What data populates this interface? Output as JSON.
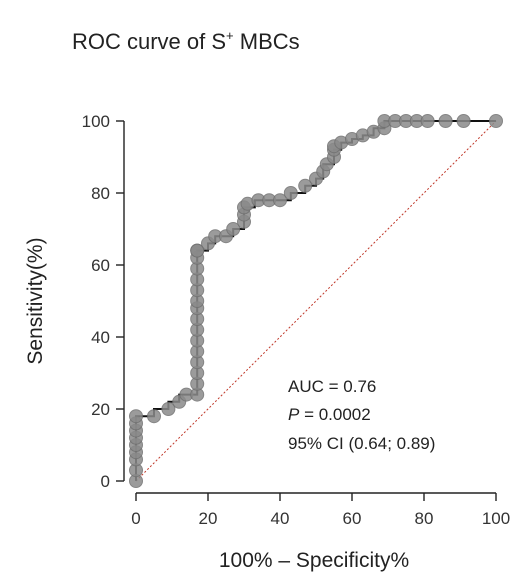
{
  "chart_data": {
    "type": "line",
    "title": "ROC curve of S",
    "title_superscript": "+",
    "title_suffix": " MBCs",
    "xlabel": "100% – Specificity%",
    "ylabel": "Sensitivity(%)",
    "xlim": [
      0,
      100
    ],
    "ylim": [
      0,
      100
    ],
    "xticks": [
      "0",
      "20",
      "40",
      "60",
      "80",
      "100"
    ],
    "yticks": [
      "0",
      "20",
      "40",
      "60",
      "80",
      "100"
    ],
    "grid": false,
    "annotations": {
      "auc": "AUC = 0.76",
      "p_label": "P",
      "p_value": " = 0.0002",
      "ci": "95% CI (0.64; 0.89)"
    },
    "colors": {
      "roc_line": "#111111",
      "points": "#8a8a8a",
      "reference_line": "#c0392b"
    },
    "series": [
      {
        "x": [
          0,
          0,
          0,
          0,
          0,
          0,
          0,
          0,
          0,
          5,
          9,
          12,
          14,
          17,
          17,
          17,
          17,
          17,
          17,
          17,
          17,
          17,
          17,
          17,
          17,
          17,
          17,
          17,
          17,
          20,
          22,
          25,
          27,
          30,
          30,
          30,
          31,
          34,
          37,
          40,
          43,
          47,
          50,
          52,
          53,
          55,
          55,
          55,
          57,
          60,
          63,
          66,
          69,
          69,
          72,
          75,
          78,
          81,
          86,
          91,
          100
        ],
        "y": [
          0,
          3,
          6,
          8,
          10,
          12,
          14,
          16,
          18,
          18,
          20,
          22,
          24,
          24,
          27,
          30,
          33,
          36,
          39,
          42,
          45,
          48,
          50,
          53,
          56,
          59,
          62,
          64,
          64,
          66,
          68,
          68,
          70,
          72,
          74,
          76,
          77,
          78,
          78,
          78,
          80,
          82,
          84,
          86,
          88,
          90,
          92,
          93,
          94,
          95,
          96,
          97,
          98,
          100,
          100,
          100,
          100,
          100,
          100,
          100,
          100
        ],
        "step_x": [
          0,
          0,
          5,
          5,
          9,
          9,
          12,
          12,
          14,
          14,
          17,
          17,
          20,
          20,
          22,
          22,
          25,
          25,
          27,
          27,
          30,
          30,
          33,
          33,
          37,
          37,
          43,
          43,
          47,
          47,
          50,
          50,
          52,
          52,
          55,
          55,
          57,
          57,
          60,
          60,
          63,
          63,
          66,
          66,
          69,
          69,
          100
        ],
        "step_y": [
          0,
          18,
          18,
          20,
          20,
          22,
          22,
          24,
          24,
          24,
          24,
          64,
          64,
          66,
          66,
          68,
          68,
          68,
          68,
          70,
          70,
          76,
          76,
          78,
          78,
          78,
          78,
          80,
          80,
          82,
          82,
          84,
          84,
          88,
          88,
          92,
          92,
          94,
          94,
          95,
          95,
          96,
          96,
          98,
          98,
          100,
          100
        ]
      }
    ]
  }
}
